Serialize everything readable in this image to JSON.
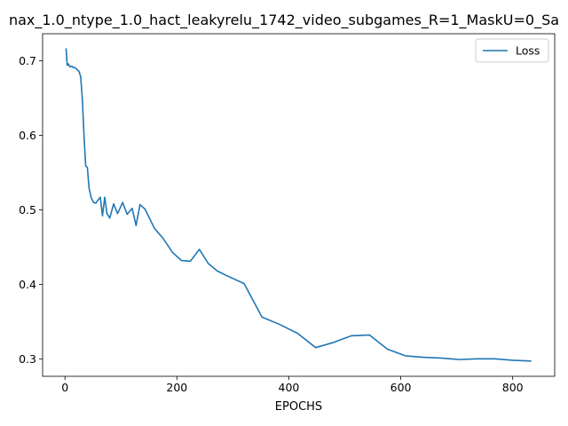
{
  "chart_data": {
    "type": "line",
    "title": "nax_1.0_ntype_1.0_hact_leakyrelu_1742_video_subgames_R=1_MaskU=0_Sa",
    "xlabel": "EPOCHS",
    "ylabel": "",
    "xlim": [
      -40,
      875
    ],
    "ylim": [
      0.2765,
      0.7365
    ],
    "xticks": [
      0,
      200,
      400,
      600,
      800
    ],
    "yticks": [
      0.3,
      0.4,
      0.5,
      0.6,
      0.7
    ],
    "xtick_labels": [
      "0",
      "200",
      "400",
      "600",
      "800"
    ],
    "ytick_labels": [
      "0.3",
      "0.4",
      "0.5",
      "0.6",
      "0.7"
    ],
    "grid": false,
    "legend_position": "upper right",
    "series": [
      {
        "name": "Loss",
        "color": "#1f77b4",
        "x": [
          2,
          4,
          6,
          9,
          12,
          15,
          18,
          22,
          25,
          28,
          31,
          34,
          37,
          40,
          43,
          47,
          51,
          55,
          59,
          63,
          67,
          71,
          75,
          80,
          87,
          94,
          103,
          111,
          120,
          127,
          134,
          143,
          160,
          175,
          192,
          208,
          224,
          240,
          256,
          272,
          288,
          320,
          352,
          384,
          416,
          448,
          480,
          512,
          544,
          576,
          608,
          640,
          672,
          704,
          736,
          768,
          800,
          832
        ],
        "y": [
          0.716,
          0.694,
          0.696,
          0.692,
          0.693,
          0.691,
          0.691,
          0.688,
          0.686,
          0.679,
          0.649,
          0.6,
          0.559,
          0.557,
          0.529,
          0.516,
          0.51,
          0.509,
          0.513,
          0.517,
          0.492,
          0.517,
          0.495,
          0.489,
          0.508,
          0.495,
          0.51,
          0.494,
          0.502,
          0.479,
          0.507,
          0.501,
          0.475,
          0.462,
          0.443,
          0.432,
          0.431,
          0.447,
          0.428,
          0.418,
          0.412,
          0.401,
          0.356,
          0.346,
          0.334,
          0.315,
          0.322,
          0.331,
          0.332,
          0.313,
          0.304,
          0.302,
          0.301,
          0.299,
          0.3,
          0.3,
          0.298,
          0.297
        ]
      }
    ]
  }
}
